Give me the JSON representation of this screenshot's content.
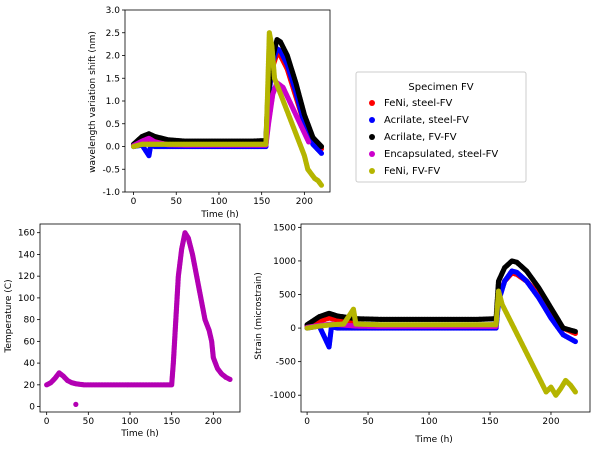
{
  "chart_data": [
    {
      "type": "scatter",
      "xlabel": "Time (h)",
      "ylabel": "wavelength variation shift (nm)",
      "xlim": [
        -10,
        230
      ],
      "ylim": [
        -1.0,
        3.0
      ],
      "xticks": [
        0,
        50,
        100,
        150,
        200
      ],
      "yticks": [
        -1.0,
        -0.5,
        0.0,
        0.5,
        1.0,
        1.5,
        2.0,
        2.5,
        3.0
      ],
      "series": [
        {
          "name": "FeNi, steel-FV",
          "color": "#ff0000",
          "x": [
            0,
            10,
            18,
            25,
            40,
            60,
            80,
            100,
            120,
            140,
            155,
            157,
            162,
            168,
            172,
            180,
            190,
            200,
            210,
            220
          ],
          "y": [
            0.02,
            0.1,
            0.15,
            0.12,
            0.06,
            0.04,
            0.04,
            0.04,
            0.04,
            0.04,
            0.05,
            0.9,
            1.7,
            2.05,
            2.0,
            1.7,
            1.1,
            0.5,
            0.1,
            -0.05
          ]
        },
        {
          "name": "Acrilate, steel-FV",
          "color": "#0000ff",
          "x": [
            0,
            10,
            18,
            20,
            25,
            40,
            60,
            80,
            100,
            120,
            140,
            155,
            157,
            162,
            168,
            172,
            180,
            190,
            200,
            210,
            220
          ],
          "y": [
            0.0,
            0.03,
            -0.2,
            0.02,
            0.0,
            0.0,
            0.0,
            0.0,
            0.0,
            0.0,
            0.0,
            0.0,
            0.8,
            1.8,
            2.15,
            2.1,
            1.8,
            1.2,
            0.5,
            0.05,
            -0.15
          ]
        },
        {
          "name": "Acrilate, FV-FV",
          "color": "#000000",
          "x": [
            0,
            10,
            18,
            25,
            40,
            60,
            80,
            100,
            120,
            140,
            155,
            157,
            162,
            168,
            172,
            180,
            190,
            200,
            210,
            220
          ],
          "y": [
            0.05,
            0.22,
            0.28,
            0.22,
            0.15,
            0.12,
            0.12,
            0.12,
            0.12,
            0.12,
            0.13,
            1.0,
            1.9,
            2.35,
            2.3,
            2.0,
            1.4,
            0.7,
            0.2,
            0.0
          ]
        },
        {
          "name": "Encapsulated, steel-FV",
          "color": "#cc00cc",
          "x": [
            0,
            10,
            18,
            25,
            40,
            60,
            80,
            100,
            120,
            140,
            155,
            158,
            163,
            168,
            175,
            185,
            195,
            200,
            205
          ],
          "y": [
            0.02,
            0.12,
            0.18,
            0.1,
            0.04,
            0.03,
            0.03,
            0.03,
            0.03,
            0.03,
            0.03,
            0.5,
            1.15,
            1.4,
            1.3,
            0.9,
            0.5,
            0.3,
            0.1
          ]
        },
        {
          "name": "FeNi, FV-FV",
          "color": "#b5b500",
          "x": [
            0,
            10,
            20,
            30,
            40,
            60,
            80,
            100,
            120,
            140,
            155,
            157,
            159,
            162,
            165,
            200,
            204,
            208,
            212,
            216,
            220
          ],
          "y": [
            0.0,
            0.05,
            0.05,
            0.05,
            0.05,
            0.05,
            0.05,
            0.05,
            0.05,
            0.05,
            0.05,
            1.2,
            2.5,
            2.2,
            1.5,
            -0.2,
            -0.5,
            -0.6,
            -0.7,
            -0.75,
            -0.85
          ]
        }
      ]
    },
    {
      "type": "scatter",
      "xlabel": "Time (h)",
      "ylabel": "Temperature (C)",
      "xlim": [
        -8,
        232
      ],
      "ylim": [
        -5,
        168
      ],
      "xticks": [
        0,
        50,
        100,
        150,
        200
      ],
      "yticks": [
        0,
        20,
        40,
        60,
        80,
        100,
        120,
        140,
        160
      ],
      "series": [
        {
          "name": "",
          "color": "#b300b3",
          "x": [
            0,
            5,
            10,
            15,
            20,
            25,
            30,
            35,
            45,
            60,
            80,
            100,
            120,
            140,
            150,
            152,
            155,
            158,
            162,
            166,
            170,
            175,
            180,
            185,
            190,
            195,
            198,
            200,
            205,
            210,
            215,
            220
          ],
          "y": [
            20,
            22,
            26,
            31,
            28,
            24,
            22,
            21,
            20,
            20,
            20,
            20,
            20,
            20,
            20,
            40,
            80,
            120,
            145,
            160,
            155,
            140,
            120,
            100,
            80,
            70,
            60,
            45,
            35,
            30,
            27,
            25
          ]
        },
        {
          "name": "",
          "color": "#b300b3",
          "x": [
            35
          ],
          "y": [
            2
          ]
        }
      ]
    },
    {
      "type": "scatter",
      "xlabel": "Time (h)",
      "ylabel": "Strain (microstrain)",
      "xlim": [
        -5,
        232
      ],
      "ylim": [
        -1250,
        1550
      ],
      "xticks": [
        0,
        50,
        100,
        150,
        200
      ],
      "yticks": [
        -1000,
        -500,
        0,
        500,
        1000,
        1500
      ],
      "series": [
        {
          "name": "FeNi, steel-FV",
          "color": "#ff0000",
          "x": [
            0,
            10,
            18,
            25,
            40,
            60,
            80,
            100,
            120,
            140,
            155,
            157,
            162,
            168,
            172,
            180,
            190,
            200,
            210,
            220
          ],
          "y": [
            20,
            100,
            150,
            120,
            60,
            40,
            40,
            40,
            40,
            40,
            50,
            450,
            700,
            820,
            800,
            700,
            500,
            250,
            0,
            -80
          ]
        },
        {
          "name": "Acrilate, steel-FV",
          "color": "#0000ff",
          "x": [
            0,
            10,
            18,
            20,
            25,
            40,
            60,
            80,
            100,
            120,
            140,
            155,
            157,
            162,
            168,
            172,
            180,
            190,
            200,
            210,
            220
          ],
          "y": [
            0,
            30,
            -280,
            20,
            0,
            0,
            0,
            0,
            0,
            0,
            0,
            0,
            400,
            700,
            850,
            830,
            700,
            450,
            150,
            -100,
            -200
          ]
        },
        {
          "name": "Acrilate, FV-FV",
          "color": "#000000",
          "x": [
            0,
            10,
            18,
            25,
            40,
            60,
            80,
            100,
            120,
            140,
            155,
            157,
            162,
            168,
            172,
            180,
            190,
            200,
            210,
            220
          ],
          "y": [
            50,
            170,
            220,
            180,
            140,
            130,
            130,
            130,
            130,
            130,
            140,
            700,
            900,
            1000,
            980,
            850,
            600,
            300,
            0,
            -50
          ]
        },
        {
          "name": "Encapsulated, steel-FV",
          "color": "#cc00cc",
          "x": [
            0,
            10,
            20,
            40,
            60,
            80,
            100,
            120,
            140,
            155
          ],
          "y": [
            10,
            40,
            60,
            30,
            25,
            25,
            25,
            25,
            25,
            25
          ]
        },
        {
          "name": "FeNi, FV-FV",
          "color": "#b5b500",
          "x": [
            0,
            10,
            20,
            30,
            38,
            40,
            60,
            80,
            100,
            120,
            140,
            155,
            157,
            160,
            196,
            200,
            204,
            208,
            212,
            216,
            220
          ],
          "y": [
            0,
            30,
            50,
            60,
            280,
            60,
            50,
            50,
            50,
            50,
            50,
            50,
            550,
            350,
            -950,
            -880,
            -1000,
            -900,
            -780,
            -850,
            -950
          ]
        }
      ]
    }
  ],
  "legend": {
    "title": "Specimen FV",
    "entries": [
      {
        "label": "FeNi, steel-FV",
        "color": "#ff0000"
      },
      {
        "label": "Acrilate, steel-FV",
        "color": "#0000ff"
      },
      {
        "label": "Acrilate, FV-FV",
        "color": "#000000"
      },
      {
        "label": "Encapsulated, steel-FV",
        "color": "#cc00cc"
      },
      {
        "label": "FeNi, FV-FV",
        "color": "#b5b500"
      }
    ]
  }
}
